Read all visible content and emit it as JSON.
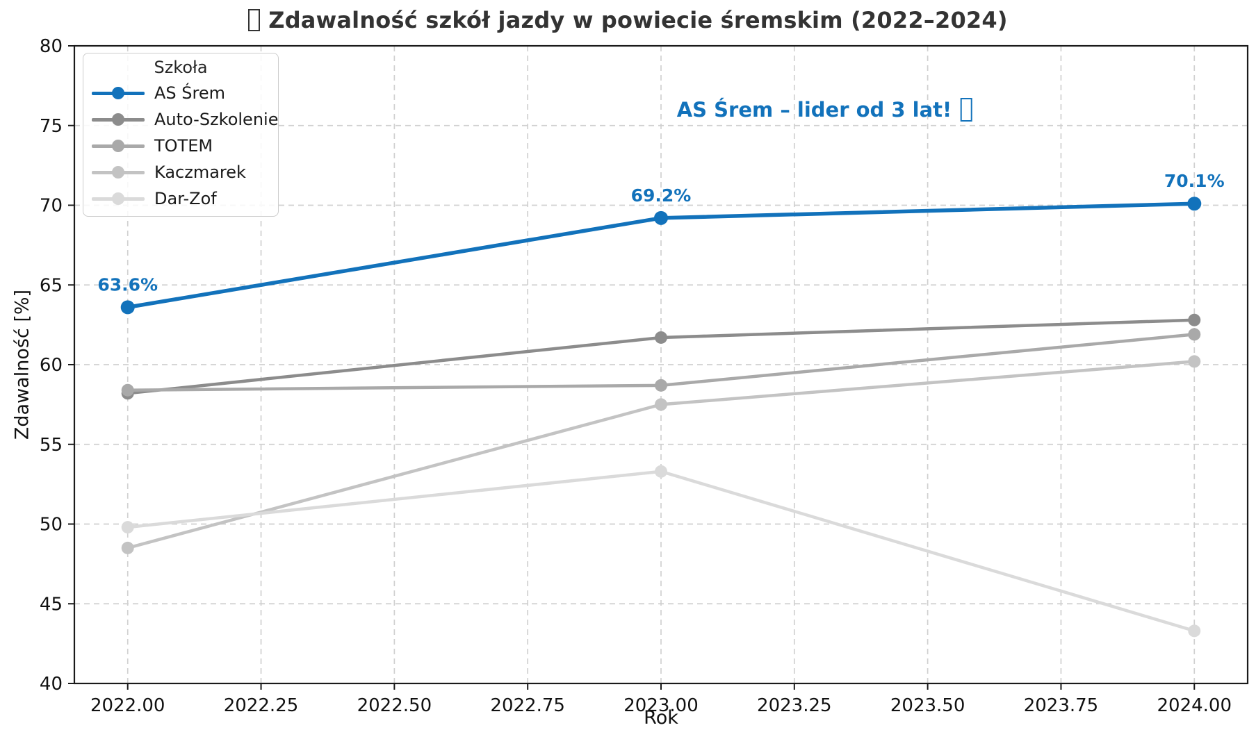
{
  "figure": {
    "title_emoji_placeholder": "missing-glyph-box (trophy emoji)",
    "annotation_emoji_placeholder": "missing-glyph-box (trophy emoji)"
  },
  "chart_data": {
    "type": "line",
    "title": "Zdawalność szkół jazdy w powiecie śremskim (2022–2024)",
    "xlabel": "Rok",
    "ylabel": "Zdawalność [%]",
    "x": [
      2022,
      2023,
      2024
    ],
    "xlim": [
      2021.9,
      2024.1
    ],
    "ylim": [
      40,
      80
    ],
    "x_ticks": [
      2022.0,
      2022.25,
      2022.5,
      2022.75,
      2023.0,
      2023.25,
      2023.5,
      2023.75,
      2024.0
    ],
    "x_tick_labels": [
      "2022.00",
      "2022.25",
      "2022.50",
      "2022.75",
      "2023.00",
      "2023.25",
      "2023.50",
      "2023.75",
      "2024.00"
    ],
    "y_ticks": [
      40,
      45,
      50,
      55,
      60,
      65,
      70,
      75,
      80
    ],
    "y_tick_labels": [
      "40",
      "45",
      "50",
      "55",
      "60",
      "65",
      "70",
      "75",
      "80"
    ],
    "grid": true,
    "grid_style": "dashed",
    "legend": {
      "title": "Szkoła",
      "position": "upper-left"
    },
    "series": [
      {
        "name": "AS Śrem",
        "values": [
          63.6,
          69.2,
          70.1
        ],
        "color": "#1272bb",
        "emphasis": true,
        "point_labels": [
          "63.6%",
          "69.2%",
          "70.1%"
        ]
      },
      {
        "name": "Auto-Szkolenie",
        "values": [
          58.2,
          61.7,
          62.8
        ],
        "color": "#8c8c8c"
      },
      {
        "name": "TOTEM",
        "values": [
          58.4,
          58.7,
          61.9
        ],
        "color": "#a9a9a9"
      },
      {
        "name": "Kaczmarek",
        "values": [
          48.5,
          57.5,
          60.2
        ],
        "color": "#c3c3c3"
      },
      {
        "name": "Dar-Zof",
        "values": [
          49.8,
          53.3,
          43.3
        ],
        "color": "#dadada"
      }
    ],
    "annotation": {
      "text": "AS Śrem – lider od 3 lat!",
      "color": "#1272bb"
    },
    "colors": {
      "accent_blue": "#1272bb",
      "grid": "#d0d0d0",
      "spine": "#1a1a1a",
      "title_text": "#333333"
    }
  }
}
